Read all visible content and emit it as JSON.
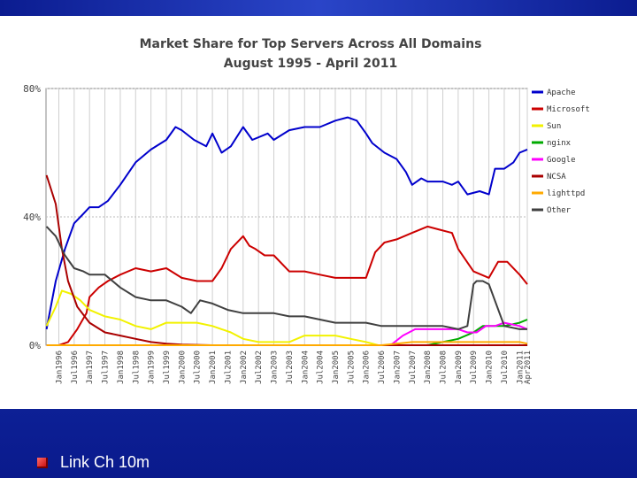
{
  "footer": {
    "label": "Link Ch 10m"
  },
  "chart_data": {
    "type": "line",
    "title": "Market Share for Top Servers Across All Domains",
    "subtitle": "August 1995 - April 2011",
    "xlabel": "",
    "ylabel": "",
    "ylim": [
      0,
      80
    ],
    "ytick_labels": [
      "0%",
      "40%",
      "80%"
    ],
    "ytick_values": [
      0,
      40,
      80
    ],
    "xlim": [
      1995.583,
      2011.25
    ],
    "grid": true,
    "legend_position": "right",
    "x_tick_labels": [
      "Jan1996",
      "Jul1996",
      "Jan1997",
      "Jul1997",
      "Jan1998",
      "Jul1998",
      "Jan1999",
      "Jul1999",
      "Jan2000",
      "Jul2000",
      "Jan2001",
      "Jul2001",
      "Jan2002",
      "Jul2002",
      "Jan2003",
      "Jul2003",
      "Jan2004",
      "Jul2004",
      "Jan2005",
      "Jul2005",
      "Jan2006",
      "Jul2006",
      "Jan2007",
      "Jul2007",
      "Jan2008",
      "Jul2008",
      "Jan2009",
      "Jul2009",
      "Jan2010",
      "Jul2010",
      "Jan2011",
      "Apr2011"
    ],
    "x_tick_values": [
      1996.0,
      1996.5,
      1997.0,
      1997.5,
      1998.0,
      1998.5,
      1999.0,
      1999.5,
      2000.0,
      2000.5,
      2001.0,
      2001.5,
      2002.0,
      2002.5,
      2003.0,
      2003.5,
      2004.0,
      2004.5,
      2005.0,
      2005.5,
      2006.0,
      2006.5,
      2007.0,
      2007.5,
      2008.0,
      2008.5,
      2009.0,
      2009.5,
      2010.0,
      2010.5,
      2011.0,
      2011.25
    ],
    "series": [
      {
        "name": "Apache",
        "color": "#0000cc",
        "x": [
          1995.6,
          1995.9,
          1996.2,
          1996.5,
          1996.8,
          1997.0,
          1997.3,
          1997.6,
          1998.0,
          1998.5,
          1999.0,
          1999.5,
          1999.8,
          2000.0,
          2000.4,
          2000.8,
          2001.0,
          2001.3,
          2001.6,
          2002.0,
          2002.3,
          2002.8,
          2003.0,
          2003.5,
          2004.0,
          2004.5,
          2005.0,
          2005.4,
          2005.7,
          2006.0,
          2006.2,
          2006.6,
          2007.0,
          2007.3,
          2007.5,
          2007.8,
          2008.0,
          2008.5,
          2008.8,
          2009.0,
          2009.3,
          2009.7,
          2010.0,
          2010.2,
          2010.5,
          2010.8,
          2011.0,
          2011.25
        ],
        "y": [
          5,
          20,
          30,
          38,
          41,
          43,
          43,
          45,
          50,
          57,
          61,
          64,
          68,
          67,
          64,
          62,
          66,
          60,
          62,
          68,
          64,
          66,
          64,
          67,
          68,
          68,
          70,
          71,
          70,
          66,
          63,
          60,
          58,
          54,
          50,
          52,
          51,
          51,
          50,
          51,
          47,
          48,
          47,
          55,
          55,
          57,
          60,
          61
        ]
      },
      {
        "name": "Microsoft",
        "color": "#cc0000",
        "x": [
          1995.6,
          1996.0,
          1996.3,
          1996.6,
          1996.9,
          1997.0,
          1997.3,
          1997.6,
          1998.0,
          1998.5,
          1999.0,
          1999.5,
          2000.0,
          2000.5,
          2001.0,
          2001.3,
          2001.6,
          2002.0,
          2002.2,
          2002.4,
          2002.7,
          2003.0,
          2003.5,
          2004.0,
          2004.5,
          2005.0,
          2005.5,
          2006.0,
          2006.3,
          2006.6,
          2007.0,
          2007.5,
          2008.0,
          2008.4,
          2008.8,
          2009.0,
          2009.5,
          2010.0,
          2010.3,
          2010.6,
          2011.0,
          2011.25
        ],
        "y": [
          0,
          0,
          1,
          5,
          10,
          15,
          18,
          20,
          22,
          24,
          23,
          24,
          21,
          20,
          20,
          24,
          30,
          34,
          31,
          30,
          28,
          28,
          23,
          23,
          22,
          21,
          21,
          21,
          29,
          32,
          33,
          35,
          37,
          36,
          35,
          30,
          23,
          21,
          26,
          26,
          22,
          19
        ]
      },
      {
        "name": "Sun",
        "color": "#f2f200",
        "x": [
          1995.6,
          1995.9,
          1996.1,
          1996.4,
          1996.7,
          1997.0,
          1997.5,
          1998.0,
          1998.5,
          1999.0,
          1999.5,
          2000.0,
          2000.5,
          2001.0,
          2001.3,
          2001.6,
          2002.0,
          2002.5,
          2003.0,
          2003.5,
          2004.0,
          2004.5,
          2005.0,
          2005.5,
          2006.0,
          2006.4,
          2006.8,
          2007.2,
          2007.6,
          2008.0,
          2008.6,
          2009.0,
          2009.5,
          2010.0,
          2010.5,
          2011.0,
          2011.25
        ],
        "y": [
          6,
          12,
          17,
          16,
          14,
          11,
          9,
          8,
          6,
          5,
          7,
          7,
          7,
          6,
          5,
          4,
          2,
          1,
          1,
          1,
          3,
          3,
          3,
          2,
          1,
          0,
          0,
          0,
          0,
          0,
          0,
          0,
          0,
          0,
          0,
          0,
          0
        ]
      },
      {
        "name": "nginx",
        "color": "#00aa00",
        "x": [
          1995.6,
          2007.0,
          2008.0,
          2008.5,
          2009.0,
          2009.5,
          2009.8,
          2010.0,
          2010.5,
          2011.0,
          2011.25
        ],
        "y": [
          0,
          0,
          0,
          1,
          2,
          4,
          6,
          6,
          6,
          7,
          8
        ]
      },
      {
        "name": "Google",
        "color": "#ff00ff",
        "x": [
          1995.6,
          2006.8,
          2007.2,
          2007.6,
          2008.0,
          2008.5,
          2009.0,
          2009.3,
          2009.6,
          2009.9,
          2010.2,
          2010.5,
          2011.0,
          2011.25
        ],
        "y": [
          0,
          0,
          3,
          5,
          5,
          5,
          5,
          4,
          4,
          6,
          6,
          7,
          6,
          5
        ]
      },
      {
        "name": "NCSA",
        "color": "#aa0000",
        "x": [
          1995.6,
          1995.7,
          1995.9,
          1996.1,
          1996.3,
          1996.6,
          1997.0,
          1997.5,
          1998.0,
          1998.5,
          1999.0,
          1999.5,
          2000.0,
          2000.5,
          2001.0,
          2011.25
        ],
        "y": [
          53,
          50,
          44,
          30,
          20,
          12,
          7,
          4,
          3,
          2,
          1,
          0.5,
          0.2,
          0.1,
          0,
          0
        ]
      },
      {
        "name": "lighttpd",
        "color": "#ffaa00",
        "x": [
          1995.6,
          2006.5,
          2007.0,
          2007.5,
          2008.0,
          2008.5,
          2009.0,
          2009.5,
          2010.0,
          2010.5,
          2011.0,
          2011.25
        ],
        "y": [
          0,
          0,
          0.5,
          1,
          1,
          1,
          1,
          1,
          1,
          1,
          1,
          0.5
        ]
      },
      {
        "name": "Other",
        "color": "#404040",
        "x": [
          1995.6,
          1995.9,
          1996.2,
          1996.5,
          1996.8,
          1997.0,
          1997.5,
          1998.0,
          1998.5,
          1999.0,
          1999.5,
          2000.0,
          2000.3,
          2000.6,
          2001.0,
          2001.5,
          2002.0,
          2002.5,
          2003.0,
          2003.5,
          2004.0,
          2004.5,
          2005.0,
          2005.5,
          2006.0,
          2006.5,
          2007.0,
          2007.5,
          2008.0,
          2008.5,
          2009.0,
          2009.3,
          2009.5,
          2009.6,
          2009.8,
          2010.0,
          2010.5,
          2011.0,
          2011.25
        ],
        "y": [
          37,
          34,
          28,
          24,
          23,
          22,
          22,
          18,
          15,
          14,
          14,
          12,
          10,
          14,
          13,
          11,
          10,
          10,
          10,
          9,
          9,
          8,
          7,
          7,
          7,
          6,
          6,
          6,
          6,
          6,
          5,
          6,
          19,
          20,
          20,
          19,
          6,
          5,
          5
        ]
      }
    ]
  }
}
